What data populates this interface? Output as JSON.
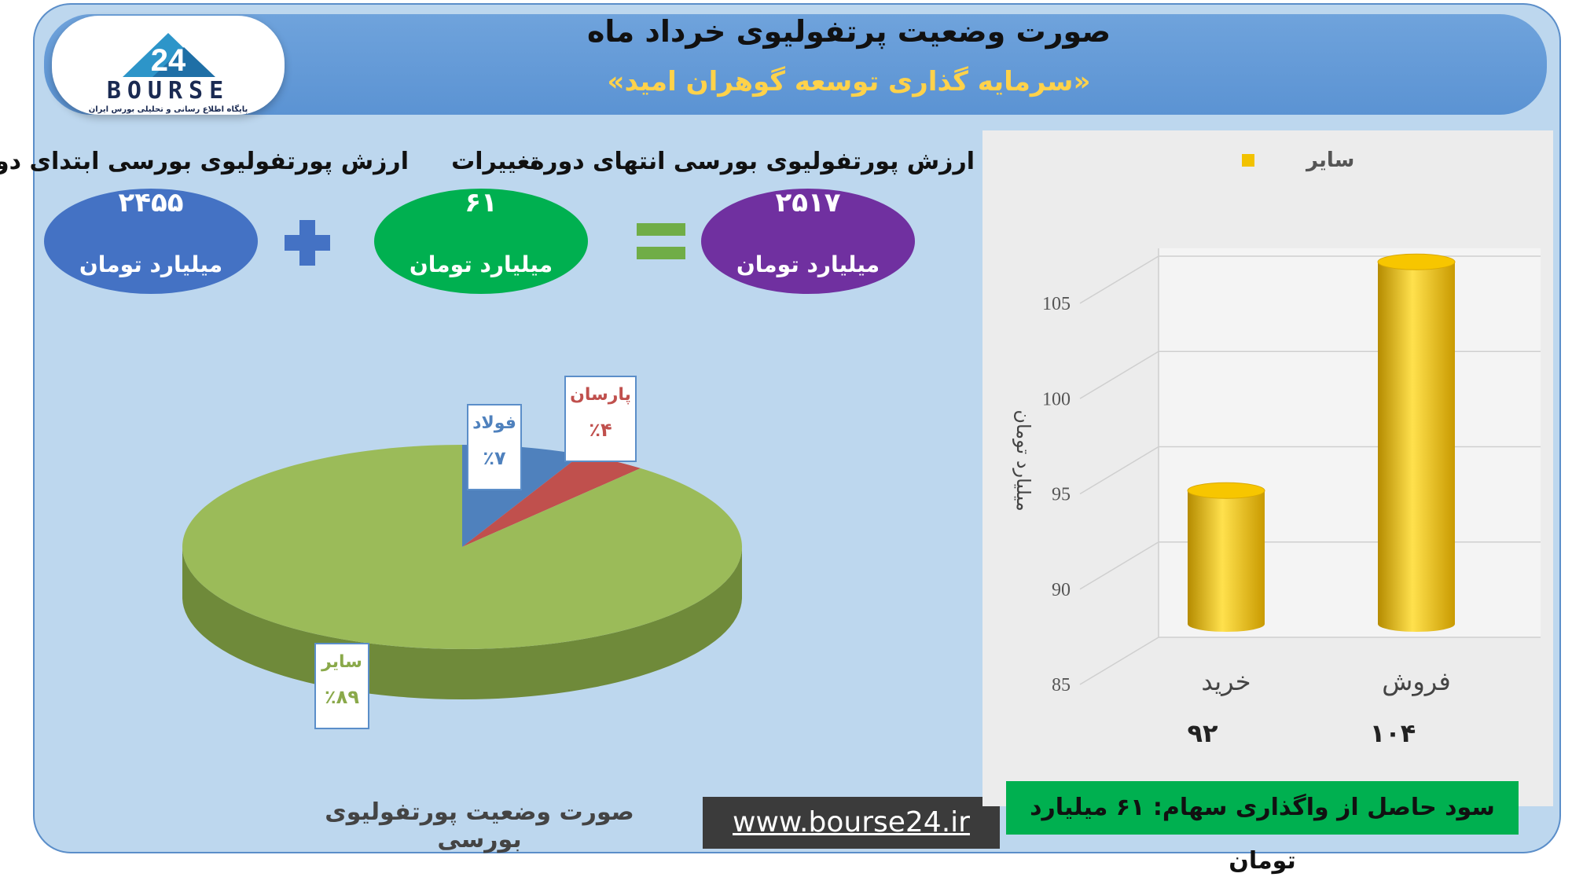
{
  "header": {
    "title": "صورت وضعیت پرتفولیوی خرداد ماه",
    "subtitle": "«سرمایه گذاری توسعه گوهران امید»",
    "logo_word": "BOURSE",
    "logo_sub": "پایگاه اطلاع رسانی و تحلیلی بورس ایران"
  },
  "summary": {
    "start_label": "ارزش پورتفولیوی بورسی ابتدای دوره",
    "start_value": "۲۴۵۵",
    "change_label": "تغییرات",
    "change_value": "۶۱",
    "end_label": "ارزش پورتفولیوی بورسی انتهای دوره",
    "end_value": "۲۵۱۷",
    "unit": "میلیارد تومان",
    "colors": {
      "start": "#4472c4",
      "change": "#00b050",
      "end": "#7030a0",
      "plus": "#4472c4",
      "equals": "#70ad47"
    }
  },
  "pie": {
    "type": "pie",
    "slices": [
      {
        "name": "فولاد",
        "pct_label": "٪۷",
        "value": 7,
        "color": "#4f81bd",
        "label_color": "#4f81bd"
      },
      {
        "name": "پارسان",
        "pct_label": "٪۴",
        "value": 4,
        "color": "#c0504d",
        "label_color": "#c0504d"
      },
      {
        "name": "سایر",
        "pct_label": "٪۸۹",
        "value": 89,
        "color": "#9bbb59",
        "label_color": "#8aa94a"
      }
    ]
  },
  "chart_data": {
    "type": "bar",
    "categories": [
      "خرید",
      "فروش"
    ],
    "values": [
      92,
      104
    ],
    "value_labels": [
      "۹۲",
      "۱۰۴"
    ],
    "series": [
      {
        "name": "سایر",
        "values": [
          92,
          104
        ]
      }
    ],
    "ylabel": "میلیارد تومان",
    "ylim": [
      85,
      105
    ],
    "yticks": [
      85,
      90,
      95,
      100,
      105
    ],
    "legend": "top-right",
    "grid": true,
    "color": "#f2c200"
  },
  "footer": {
    "caption": "صورت وضعیت پورتفولیوی بورسی",
    "website": "www.bourse24.ir",
    "profit": "سود حاصل از واگذاری سهام: ۶۱ میلیارد تومان"
  }
}
